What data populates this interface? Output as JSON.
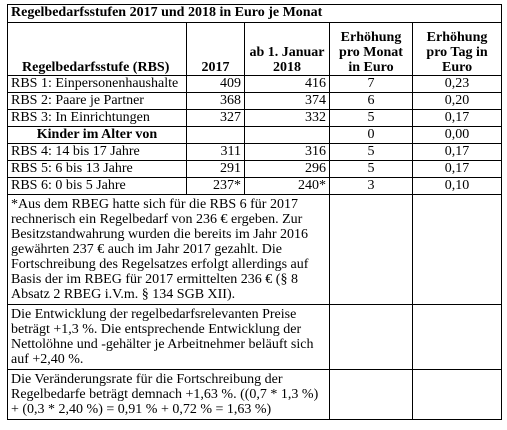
{
  "table": {
    "title": "Regelbedarfsstufen 2017 und 2018 in Euro je Monat",
    "header": [
      "Regelbedarfsstufe (RBS)",
      "2017",
      "ab 1. Januar 2018",
      "Erhöhung pro Monat in Euro",
      "Erhöhung pro Tag in Euro"
    ],
    "rows": [
      [
        "RBS 1: Einpersonenhaushalte",
        "409",
        "416",
        "7",
        "0,23"
      ],
      [
        "RBS 2: Paare je Partner",
        "368",
        "374",
        "6",
        "0,20"
      ],
      [
        "RBS 3: In Einrichtungen",
        "327",
        "332",
        "5",
        "0,17"
      ],
      [
        "Kinder im Alter von",
        "",
        "",
        "0",
        "0,00"
      ],
      [
        "RBS 4: 14 bis 17 Jahre",
        "311",
        "316",
        "5",
        "0,17"
      ],
      [
        "RBS 5: 6 bis 13 Jahre",
        "291",
        "296",
        "5",
        "0,17"
      ],
      [
        "RBS 6: 0 bis 5 Jahre",
        "237*",
        "240*",
        "3",
        "0,10"
      ]
    ],
    "notes": [
      "*Aus dem RBEG hatte sich für die RBS 6 für 2017 rechnerisch ein Regelbedarf von 236 € ergeben. Zur Besitzstandwahrung wurden die bereits im Jahr 2016 gewährten 237 € auch im Jahr 2017 gezahlt. Die Fortschreibung des Regelsatzes erfolgt allerdings auf Basis der im RBEG für 2017 ermittelten 236 € (§ 8 Absatz 2 RBEG i.V.m. § 134 SGB XII).",
      "Die Entwicklung der regelbedarfsrelevanten Preise beträgt +1,3 %. Die entsprechende Entwicklung der Nettolöhne und -gehälter je Arbeitnehmer beläuft sich auf +2,40 %.",
      "Die Veränderungsrate für die Fortschreibung der Regelbedarfe beträgt demnach +1,63 %. ((0,7 * 1,3 %) + (0,3 * 2,40 %) = 0,91 % + 0,72 % = 1,63 %)"
    ]
  }
}
